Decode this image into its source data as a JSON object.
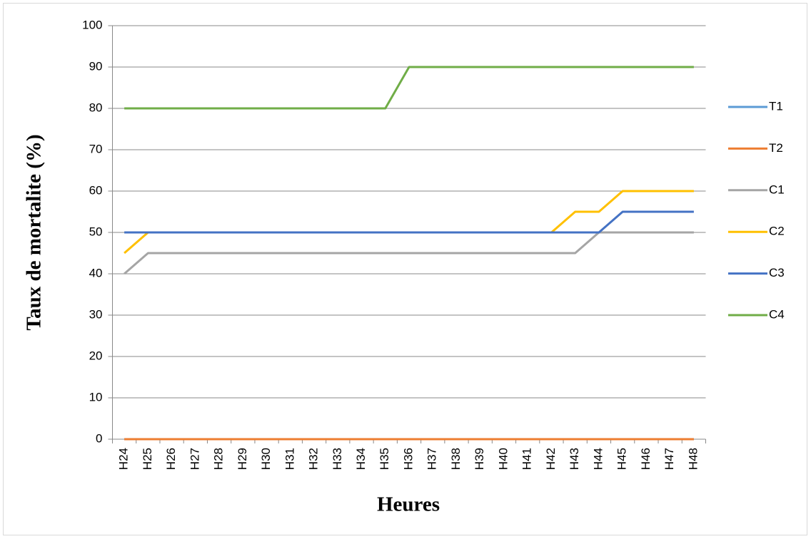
{
  "chart_data": {
    "type": "line",
    "y_label": "Taux de mortalite (%)",
    "x_label": "Heures",
    "categories": [
      "H24",
      "H25",
      "H26",
      "H27",
      "H28",
      "H29",
      "H30",
      "H31",
      "H32",
      "H33",
      "H34",
      "H35",
      "H36",
      "H37",
      "H38",
      "H39",
      "H40",
      "H41",
      "H42",
      "H43",
      "H44",
      "H45",
      "H46",
      "H47",
      "H48"
    ],
    "series": [
      {
        "name": "T1",
        "color": "#5b9bd5",
        "values": [
          0,
          0,
          0,
          0,
          0,
          0,
          0,
          0,
          0,
          0,
          0,
          0,
          0,
          0,
          0,
          0,
          0,
          0,
          0,
          0,
          0,
          0,
          0,
          0,
          0
        ]
      },
      {
        "name": "T2",
        "color": "#ed7d31",
        "values": [
          0,
          0,
          0,
          0,
          0,
          0,
          0,
          0,
          0,
          0,
          0,
          0,
          0,
          0,
          0,
          0,
          0,
          0,
          0,
          0,
          0,
          0,
          0,
          0,
          0
        ]
      },
      {
        "name": "C1",
        "color": "#a5a5a5",
        "values": [
          40,
          45,
          45,
          45,
          45,
          45,
          45,
          45,
          45,
          45,
          45,
          45,
          45,
          45,
          45,
          45,
          45,
          45,
          45,
          45,
          50,
          50,
          50,
          50,
          50
        ]
      },
      {
        "name": "C2",
        "color": "#ffc000",
        "values": [
          45,
          50,
          50,
          50,
          50,
          50,
          50,
          50,
          50,
          50,
          50,
          50,
          50,
          50,
          50,
          50,
          50,
          50,
          50,
          55,
          55,
          60,
          60,
          60,
          60
        ]
      },
      {
        "name": "C3",
        "color": "#4472c4",
        "values": [
          50,
          50,
          50,
          50,
          50,
          50,
          50,
          50,
          50,
          50,
          50,
          50,
          50,
          50,
          50,
          50,
          50,
          50,
          50,
          50,
          50,
          55,
          55,
          55,
          55
        ]
      },
      {
        "name": "C4",
        "color": "#70ad47",
        "values": [
          80,
          80,
          80,
          80,
          80,
          80,
          80,
          80,
          80,
          80,
          80,
          80,
          90,
          90,
          90,
          90,
          90,
          90,
          90,
          90,
          90,
          90,
          90,
          90,
          90
        ]
      }
    ],
    "ylim": [
      0,
      100
    ],
    "yticks": [
      0,
      10,
      20,
      30,
      40,
      50,
      60,
      70,
      80,
      90,
      100
    ],
    "grid": true,
    "legend": "right"
  }
}
